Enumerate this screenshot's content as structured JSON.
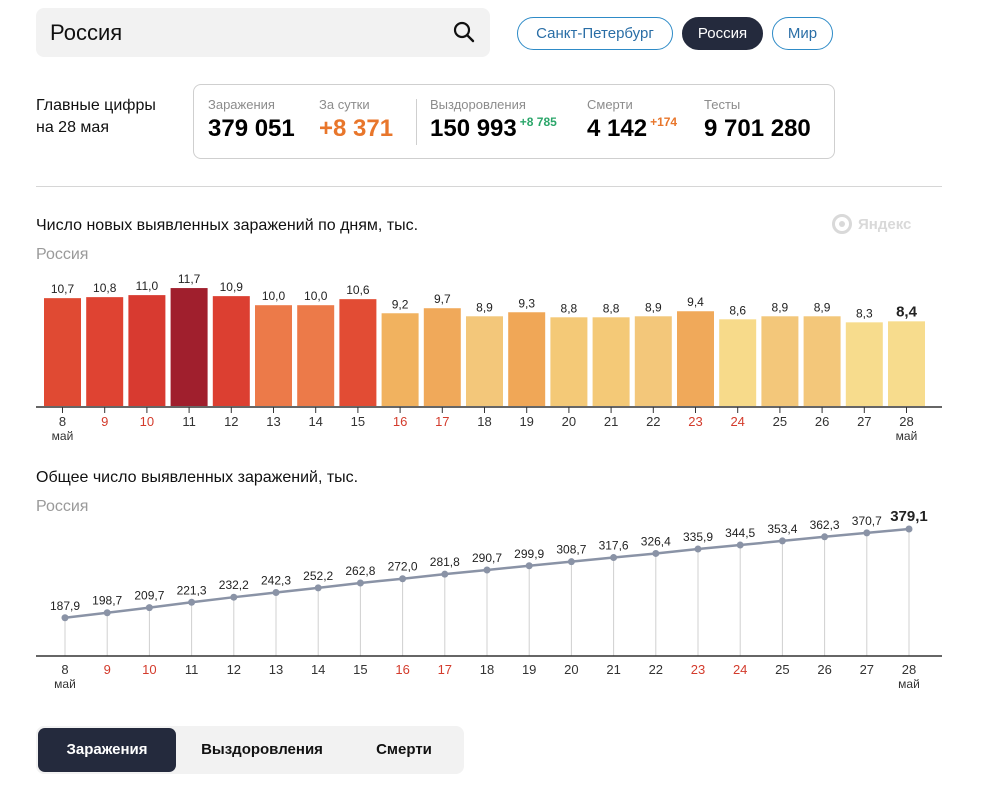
{
  "search": {
    "value": "Россия"
  },
  "regions": [
    {
      "label": "Санкт-Петербург",
      "active": false
    },
    {
      "label": "Россия",
      "active": true
    },
    {
      "label": "Мир",
      "active": false
    }
  ],
  "summary": {
    "title_line1": "Главные цифры",
    "title_line2": "на 28 мая",
    "infections_label": "Заражения",
    "infections_value": "379 051",
    "perday_label": "За сутки",
    "perday_value": "+8 371",
    "recovered_label": "Выздоровления",
    "recovered_value": "150 993",
    "recovered_delta": "+8 785",
    "deaths_label": "Смерти",
    "deaths_value": "4 142",
    "deaths_delta": "+174",
    "tests_label": "Тесты",
    "tests_value": "9 701 280"
  },
  "colors": {
    "accent_orange": "#e8762b",
    "delta_green": "#2ba66a",
    "dark": "#242a3d",
    "weekend_red": "#d33b2c"
  },
  "watermark": "Яндекс",
  "chart_data": [
    {
      "type": "bar",
      "title": "Число новых выявленных заражений по дням, тыс.",
      "subtitle": "Россия",
      "categories": [
        "8",
        "9",
        "10",
        "11",
        "12",
        "13",
        "14",
        "15",
        "16",
        "17",
        "18",
        "19",
        "20",
        "21",
        "22",
        "23",
        "24",
        "25",
        "26",
        "27",
        "28"
      ],
      "month_labels": {
        "first": "май",
        "last": "май"
      },
      "weekend_categories": [
        "9",
        "10",
        "16",
        "17",
        "23",
        "24"
      ],
      "values": [
        10.7,
        10.8,
        11.0,
        11.7,
        10.9,
        10.0,
        10.0,
        10.6,
        9.2,
        9.7,
        8.9,
        9.3,
        8.8,
        8.8,
        8.9,
        9.4,
        8.6,
        8.9,
        8.9,
        8.3,
        8.4
      ],
      "labels": [
        "10,7",
        "10,8",
        "11,0",
        "11,7",
        "10,9",
        "10,0",
        "10,0",
        "10,6",
        "9,2",
        "9,7",
        "8,9",
        "9,3",
        "8,8",
        "8,8",
        "8,9",
        "9,4",
        "8,6",
        "8,9",
        "8,9",
        "8,3",
        "8,4"
      ],
      "bar_colors": [
        "#e04a33",
        "#df4332",
        "#d83a30",
        "#a01f2d",
        "#dc3f31",
        "#ec7a49",
        "#ec7a49",
        "#e24c34",
        "#f1b25f",
        "#f0a95a",
        "#f3c77a",
        "#f0a757",
        "#f4c977",
        "#f4c977",
        "#f3c77a",
        "#f0a95a",
        "#f7da8a",
        "#f3c77a",
        "#f3c77a",
        "#f7dc8d",
        "#f7dc8d"
      ],
      "ylim": [
        0,
        12.5
      ]
    },
    {
      "type": "line",
      "title": "Общее число выявленных заражений, тыс.",
      "subtitle": "Россия",
      "categories": [
        "8",
        "9",
        "10",
        "11",
        "12",
        "13",
        "14",
        "15",
        "16",
        "17",
        "18",
        "19",
        "20",
        "21",
        "22",
        "23",
        "24",
        "25",
        "26",
        "27",
        "28"
      ],
      "month_labels": {
        "first": "май",
        "last": "май"
      },
      "weekend_categories": [
        "9",
        "10",
        "16",
        "17",
        "23",
        "24"
      ],
      "values": [
        187.9,
        198.7,
        209.7,
        221.3,
        232.2,
        242.3,
        252.2,
        262.8,
        272.0,
        281.8,
        290.7,
        299.9,
        308.7,
        317.6,
        326.4,
        335.9,
        344.5,
        353.4,
        362.3,
        370.7,
        379.1
      ],
      "labels": [
        "187,9",
        "198,7",
        "209,7",
        "221,3",
        "232,2",
        "242,3",
        "252,2",
        "262,8",
        "272,0",
        "281,8",
        "290,7",
        "299,9",
        "308,7",
        "317,6",
        "326,4",
        "335,9",
        "344,5",
        "353,4",
        "362,3",
        "370,7",
        "379,1"
      ],
      "ylim": [
        0,
        400
      ]
    }
  ],
  "bottom_tabs": [
    {
      "label": "Заражения",
      "active": true
    },
    {
      "label": "Выздоровления",
      "active": false
    },
    {
      "label": "Смерти",
      "active": false
    }
  ]
}
